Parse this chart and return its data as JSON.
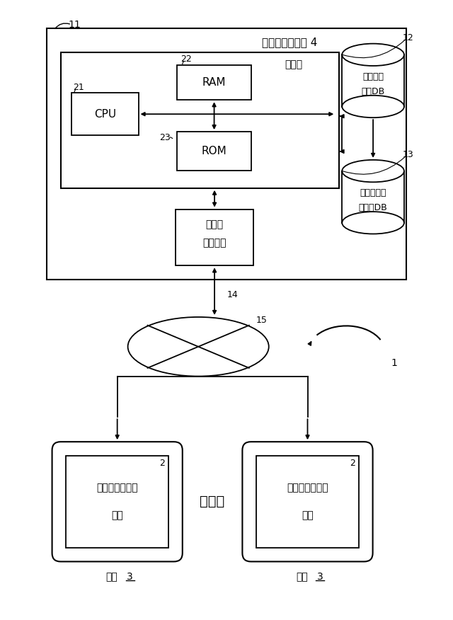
{
  "bg_color": "#ffffff",
  "line_color": "#000000",
  "fig_width": 6.4,
  "fig_height": 8.76,
  "labels": {
    "probe_center": "プローブセンタ 4",
    "server": "サーバ",
    "ram": "RAM",
    "rom": "ROM",
    "cpu": "CPU",
    "center_comm_1": "センタ",
    "center_comm_2": "通信装置",
    "probe_info_db_1": "プローブ",
    "probe_info_db_2": "情報DB",
    "probe_stat_db_1": "プローブ統",
    "probe_stat_db_2": "計情報DB",
    "navi_line1": "ナビゲーション",
    "navi_line2": "装置",
    "vehicle": "車両",
    "vehicle_num": "3",
    "dots": "・・・",
    "num_11": "11",
    "num_12": "12",
    "num_13": "13",
    "num_14": "14",
    "num_15": "15",
    "num_21": "21",
    "num_22": "22",
    "num_23": "23",
    "num_1": "1",
    "num_2": "2"
  }
}
